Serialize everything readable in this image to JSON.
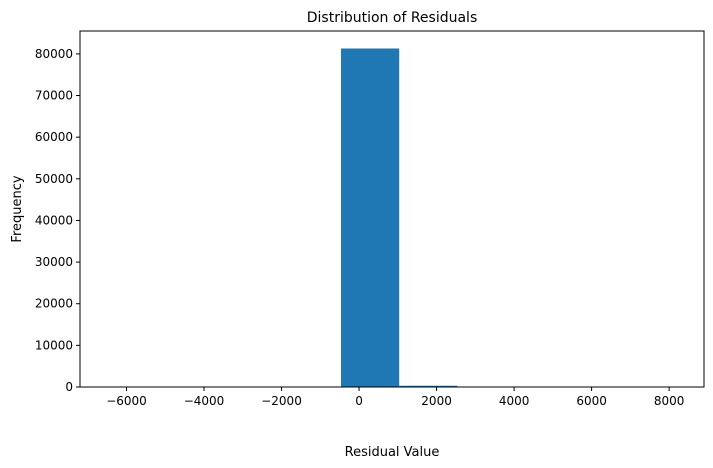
{
  "chart_data": {
    "type": "bar",
    "title": "Distribution of Residuals",
    "xlabel": "Residual Value",
    "ylabel": "Frequency",
    "xlim": [
      -7200,
      8900
    ],
    "ylim": [
      0,
      85500
    ],
    "x_ticks": [
      -6000,
      -4000,
      -2000,
      0,
      2000,
      4000,
      6000,
      8000
    ],
    "x_tick_labels": [
      "−6000",
      "−4000",
      "−2000",
      "0",
      "2000",
      "4000",
      "6000",
      "8000"
    ],
    "y_ticks": [
      0,
      10000,
      20000,
      30000,
      40000,
      50000,
      60000,
      70000,
      80000
    ],
    "y_tick_labels": [
      "0",
      "10000",
      "20000",
      "30000",
      "40000",
      "50000",
      "60000",
      "70000",
      "80000"
    ],
    "bin_edges": [
      -6471,
      -4970,
      -3468,
      -1967,
      -466,
      1036,
      2537,
      4039,
      5540,
      7041,
      8543
    ],
    "counts": [
      0,
      0,
      0,
      0,
      81300,
      300,
      0,
      0,
      0,
      0
    ],
    "bar_color": "#1f77b4",
    "grid": false,
    "legend": "none"
  }
}
